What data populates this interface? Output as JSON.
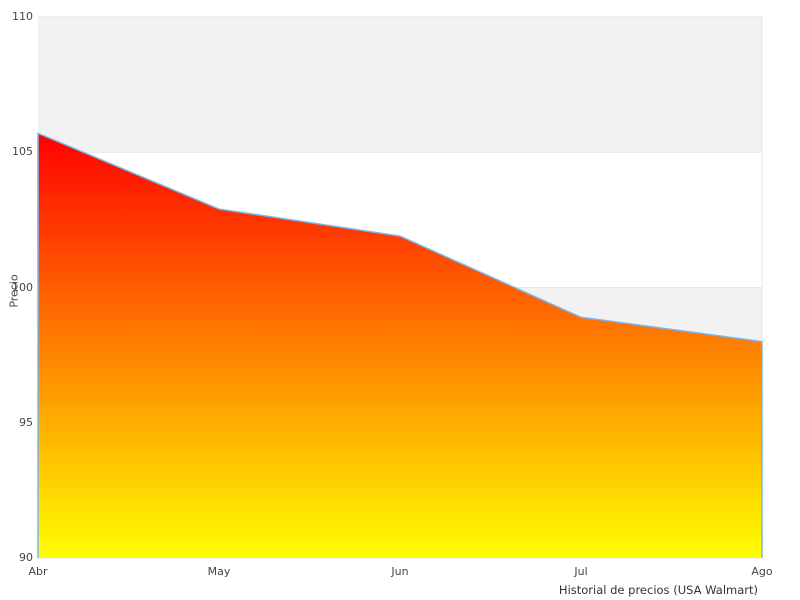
{
  "chart": {
    "ylabel": "Precio",
    "xlabel": "Historial de precios (USA Walmart)"
  },
  "chart_data": {
    "type": "area",
    "title": "Historial de precios (USA Walmart)",
    "xlabel": "Historial de precios (USA Walmart)",
    "ylabel": "Precio",
    "categories": [
      "Abr",
      "May",
      "Jun",
      "Jul",
      "Ago"
    ],
    "values": [
      105.7,
      102.9,
      101.9,
      98.9,
      98.0
    ],
    "ylim": [
      90,
      110
    ],
    "yticks": [
      110,
      105,
      100,
      95,
      90
    ],
    "grid": "horizontal",
    "legend": "none",
    "alternate_bands": [
      [
        105,
        110
      ],
      [
        95,
        100
      ]
    ],
    "colors": {
      "line": "#7cb5ec",
      "area_gradient_top": "#ff0000",
      "area_gradient_bottom": "#ffff00",
      "band": "#f2f2f2",
      "gridline": "#e6e6e6",
      "tick_label": "#444444"
    }
  }
}
